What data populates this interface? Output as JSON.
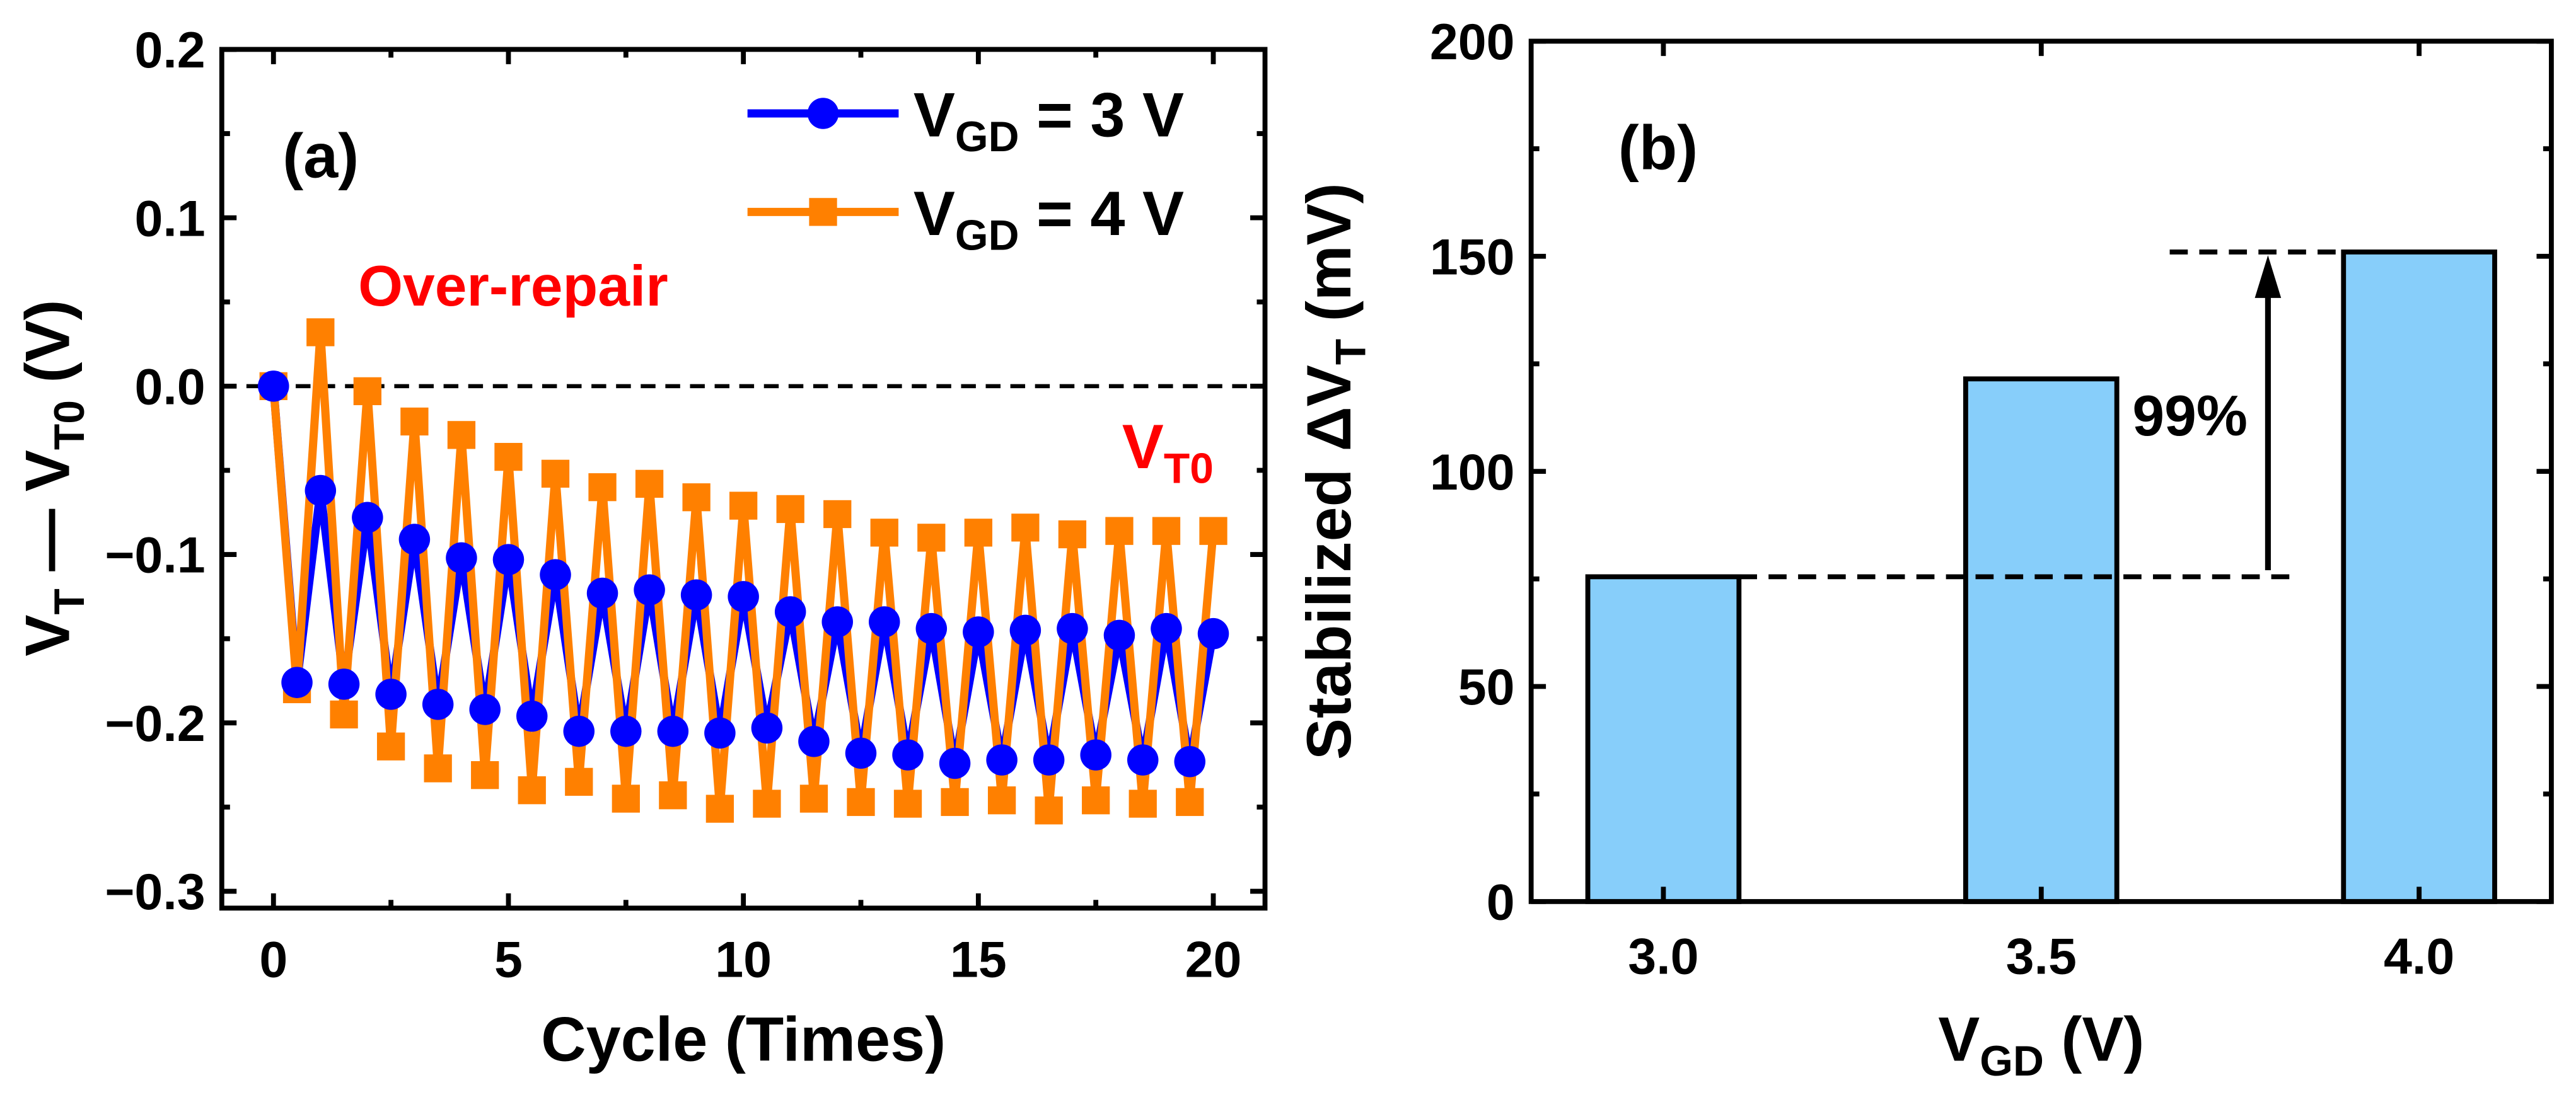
{
  "chart_data": [
    {
      "type": "line",
      "panel_label": "(a)",
      "xlabel": "Cycle (Times)",
      "ylabel": {
        "main": "V",
        "sub1": "T",
        "dash": " — V",
        "sub2": "T0",
        "unit": " (V)"
      },
      "xlim": [
        -1.1,
        21.1
      ],
      "ylim": [
        -0.31,
        0.2
      ],
      "xticks": [
        0,
        5,
        10,
        15,
        20
      ],
      "xtick_labels": [
        "0",
        "5",
        "10",
        "15",
        "20"
      ],
      "yticks": [
        0.2,
        0.1,
        0.0,
        -0.1,
        -0.2,
        -0.3
      ],
      "ytick_labels": [
        "0.2",
        "0.1",
        "0.0",
        "−0.1",
        "−0.2",
        "−0.3"
      ],
      "reference_line": {
        "y": 0,
        "label_main": "V",
        "label_sub": "T0",
        "color": "#ff0000"
      },
      "annotation": {
        "text": "Over-repair",
        "color": "#ff0000"
      },
      "legend": {
        "placement": "top-right"
      },
      "series": [
        {
          "name": "VGD = 3 V",
          "legend_main": "V",
          "legend_sub": "GD",
          "legend_rest": " = 3 V",
          "color": "#0000ff",
          "marker": "circle",
          "x": [
            0,
            0.5,
            1,
            1.5,
            2,
            2.5,
            3,
            3.5,
            4,
            4.5,
            5,
            5.5,
            6,
            6.5,
            7,
            7.5,
            8,
            8.5,
            9,
            9.5,
            10,
            10.5,
            11,
            11.5,
            12,
            12.5,
            13,
            13.5,
            14,
            14.5,
            15,
            15.5,
            16,
            16.5,
            17,
            17.5,
            18,
            18.5,
            19,
            19.5,
            20
          ],
          "y": [
            0,
            -0.176,
            -0.062,
            -0.177,
            -0.078,
            -0.183,
            -0.091,
            -0.189,
            -0.102,
            -0.192,
            -0.103,
            -0.196,
            -0.112,
            -0.205,
            -0.123,
            -0.205,
            -0.121,
            -0.205,
            -0.124,
            -0.206,
            -0.125,
            -0.203,
            -0.134,
            -0.211,
            -0.14,
            -0.218,
            -0.14,
            -0.219,
            -0.144,
            -0.224,
            -0.146,
            -0.222,
            -0.145,
            -0.222,
            -0.144,
            -0.219,
            -0.148,
            -0.222,
            -0.144,
            -0.223,
            -0.147
          ]
        },
        {
          "name": "VGD = 4 V",
          "legend_main": "V",
          "legend_sub": "GD",
          "legend_rest": " = 4 V",
          "color": "#ff8000",
          "marker": "square",
          "x": [
            0,
            0.5,
            1,
            1.5,
            2,
            2.5,
            3,
            3.5,
            4,
            4.5,
            5,
            5.5,
            6,
            6.5,
            7,
            7.5,
            8,
            8.5,
            9,
            9.5,
            10,
            10.5,
            11,
            11.5,
            12,
            12.5,
            13,
            13.5,
            14,
            14.5,
            15,
            15.5,
            16,
            16.5,
            17,
            17.5,
            18,
            18.5,
            19,
            19.5,
            20
          ],
          "y": [
            0,
            -0.18,
            0.032,
            -0.195,
            -0.003,
            -0.214,
            -0.021,
            -0.227,
            -0.029,
            -0.231,
            -0.042,
            -0.24,
            -0.052,
            -0.235,
            -0.06,
            -0.245,
            -0.058,
            -0.243,
            -0.066,
            -0.251,
            -0.071,
            -0.248,
            -0.073,
            -0.245,
            -0.076,
            -0.247,
            -0.087,
            -0.248,
            -0.09,
            -0.247,
            -0.087,
            -0.246,
            -0.084,
            -0.252,
            -0.088,
            -0.246,
            -0.086,
            -0.248,
            -0.086,
            -0.247,
            -0.086
          ]
        }
      ]
    },
    {
      "type": "bar",
      "panel_label": "(b)",
      "xlabel": {
        "main": "V",
        "sub": "GD",
        "unit": " (V)"
      },
      "ylabel": {
        "main": "Stabilized ΔV",
        "sub": "T",
        "unit": " (mV)"
      },
      "categories": [
        "3.0",
        "3.5",
        "4.0"
      ],
      "x": [
        3.0,
        3.5,
        4.0
      ],
      "values": [
        75.5,
        121.5,
        151
      ],
      "bar_width": 0.2,
      "bar_color": "#87cefa",
      "xlim": [
        2.825,
        4.175
      ],
      "ylim": [
        0,
        200
      ],
      "yticks": [
        0,
        50,
        100,
        150,
        200
      ],
      "ytick_labels": [
        "0",
        "50",
        "100",
        "150",
        "200"
      ],
      "annotation": {
        "text": "99%",
        "from_value": 75.5,
        "to_value": 151
      }
    }
  ]
}
